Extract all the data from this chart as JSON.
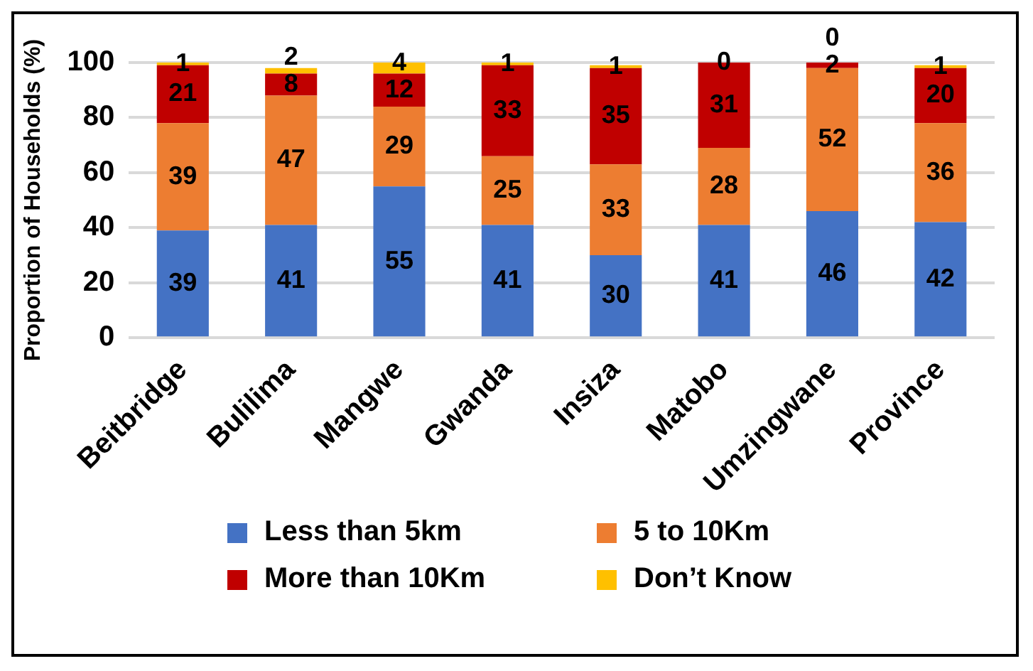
{
  "chart_data": {
    "type": "bar",
    "stacked": true,
    "ylabel": "Proportion of Households (%)",
    "categories": [
      "Beitbridge",
      "Bulilima",
      "Mangwe",
      "Gwanda",
      "Insiza",
      "Matobo",
      "Umzingwane",
      "Province"
    ],
    "series": [
      {
        "name": "Less than 5km",
        "color": "#4472c4",
        "values": [
          39,
          41,
          55,
          41,
          30,
          41,
          46,
          42
        ]
      },
      {
        "name": "5 to 10Km",
        "color": "#ed7d31",
        "values": [
          39,
          47,
          29,
          25,
          33,
          28,
          52,
          36
        ]
      },
      {
        "name": "More than 10Km",
        "color": "#c00000",
        "values": [
          21,
          8,
          12,
          33,
          35,
          31,
          2,
          20
        ]
      },
      {
        "name": "Don’t Know",
        "color": "#ffc000",
        "values": [
          1,
          2,
          4,
          1,
          1,
          0,
          0,
          1
        ]
      }
    ],
    "ylim": [
      0,
      100
    ],
    "yticks": [
      0,
      20,
      40,
      60,
      80,
      100
    ],
    "grid": "y",
    "legend": "bottom",
    "data_labels": true
  }
}
